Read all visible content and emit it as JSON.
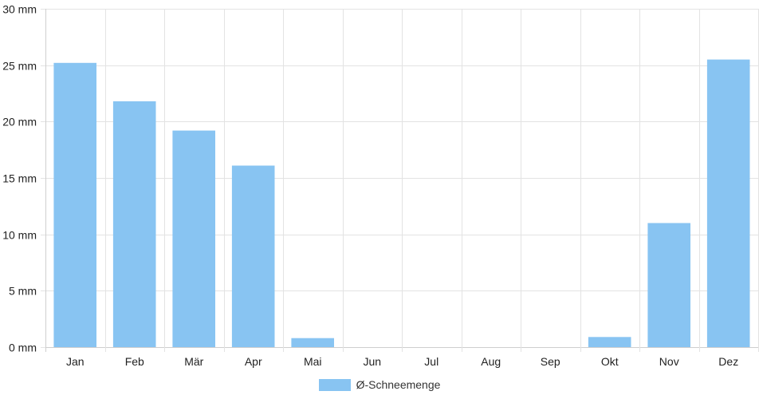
{
  "chart_data": {
    "type": "bar",
    "categories": [
      "Jan",
      "Feb",
      "Mär",
      "Apr",
      "Mai",
      "Jun",
      "Jul",
      "Aug",
      "Sep",
      "Okt",
      "Nov",
      "Dez"
    ],
    "series": [
      {
        "name": "Ø-Schneemenge",
        "values": [
          25.2,
          21.8,
          19.2,
          16.1,
          0.8,
          0,
          0,
          0,
          0,
          0.9,
          11.0,
          25.5
        ]
      }
    ],
    "ylim": [
      0,
      30
    ],
    "yticks": [
      0,
      5,
      10,
      15,
      20,
      25,
      30
    ],
    "ytick_labels": [
      "0 mm",
      "5 mm",
      "10 mm",
      "15 mm",
      "20 mm",
      "25 mm",
      "30 mm"
    ],
    "grid": true,
    "legend_position": "bottom",
    "title": "",
    "xlabel": "",
    "ylabel": ""
  },
  "colors": {
    "bar": "#88c4f2",
    "grid": "#e3e3e3",
    "axis": "#cfcfcf"
  },
  "legend": {
    "label": "Ø-Schneemenge"
  }
}
